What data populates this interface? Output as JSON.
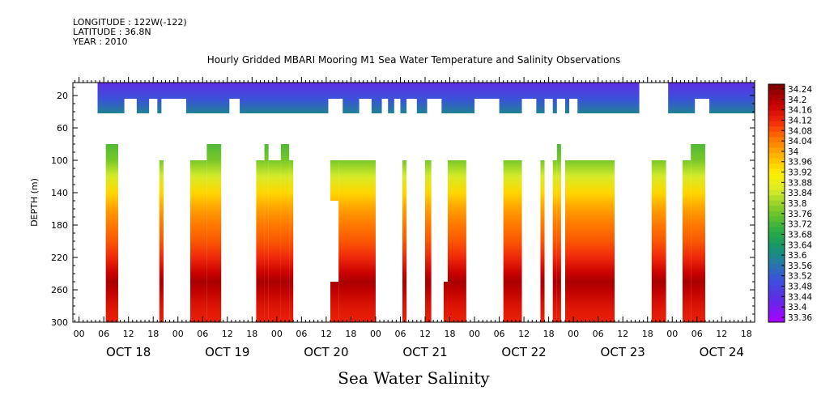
{
  "header": {
    "longitude": "LONGITUDE : 122W(-122)",
    "latitude": "LATITUDE : 36.8N",
    "year": "YEAR : 2010"
  },
  "chart_data": {
    "type": "heatmap",
    "title": "Hourly Gridded MBARI Mooring M1 Sea Water Temperature and Salinity Observations",
    "xlabel": "Sea Water Salinity",
    "ylabel": "DEPTH (m)",
    "x_hour_ticks": [
      "00",
      "06",
      "12",
      "18",
      "00",
      "06",
      "12",
      "18",
      "00",
      "06",
      "12",
      "18",
      "00",
      "06",
      "12",
      "18",
      "00",
      "06",
      "12",
      "18",
      "00",
      "06",
      "12",
      "18",
      "00",
      "06",
      "12",
      "18"
    ],
    "x_day_labels": [
      "OCT 18",
      "OCT 19",
      "OCT 20",
      "OCT 21",
      "OCT 22",
      "OCT 23",
      "OCT 24"
    ],
    "xlim_hours": [
      -1.5,
      164
    ],
    "y_ticks": [
      20,
      60,
      100,
      140,
      180,
      220,
      260,
      300
    ],
    "ylim": [
      300,
      4
    ],
    "colorbar": {
      "labels": [
        "34.24",
        "34.2",
        "34.16",
        "34.12",
        "34.08",
        "34.04",
        "34",
        "33.96",
        "33.92",
        "33.88",
        "33.84",
        "33.8",
        "33.76",
        "33.72",
        "33.68",
        "33.64",
        "33.6",
        "33.56",
        "33.52",
        "33.48",
        "33.44",
        "33.4",
        "33.36"
      ],
      "range": [
        33.36,
        34.26
      ]
    },
    "surface_layer": {
      "depth": [
        4,
        42
      ],
      "salinity_top": 33.45,
      "salinity_bottom": 33.6,
      "data_hours": [
        [
          4.5,
          136
        ],
        [
          143,
          164
        ]
      ],
      "deep_extent_gaps": [
        [
          11,
          14
        ],
        [
          17,
          19
        ],
        [
          20,
          26
        ],
        [
          36.5,
          39
        ],
        [
          60.5,
          64
        ],
        [
          68,
          71
        ],
        [
          73.5,
          75
        ],
        [
          76.5,
          78
        ],
        [
          79.5,
          82
        ],
        [
          84.5,
          88
        ],
        [
          96,
          102
        ],
        [
          107.5,
          111
        ],
        [
          113,
          115
        ],
        [
          116,
          118
        ],
        [
          119,
          121
        ],
        [
          149.5,
          153
        ]
      ]
    },
    "deep_layer": {
      "profile_depths": [
        80,
        100,
        120,
        140,
        160,
        180,
        200,
        220,
        240,
        250,
        260,
        280,
        300
      ],
      "profile_salinity": [
        33.74,
        33.78,
        33.86,
        33.95,
        34.01,
        34.05,
        34.08,
        34.12,
        34.18,
        34.21,
        34.19,
        34.15,
        34.13
      ],
      "segments": [
        {
          "hours": [
            6.5,
            9.5
          ],
          "top": 80
        },
        {
          "hours": [
            19.5,
            20.5
          ],
          "top": 100
        },
        {
          "hours": [
            27,
            31
          ],
          "top": 100
        },
        {
          "hours": [
            31,
            34.5
          ],
          "top": 80
        },
        {
          "hours": [
            43,
            45
          ],
          "top": 100
        },
        {
          "hours": [
            45,
            46
          ],
          "top": 80
        },
        {
          "hours": [
            46,
            49
          ],
          "top": 100
        },
        {
          "hours": [
            49,
            51
          ],
          "top": 80
        },
        {
          "hours": [
            51,
            52
          ],
          "top": 100
        },
        {
          "hours": [
            61,
            63
          ],
          "top": 100,
          "bottom": 150
        },
        {
          "hours": [
            61,
            63
          ],
          "top": 250,
          "bottom": 300
        },
        {
          "hours": [
            63,
            72
          ],
          "top": 100
        },
        {
          "hours": [
            78.5,
            79.5
          ],
          "top": 100
        },
        {
          "hours": [
            84,
            85.5
          ],
          "top": 100
        },
        {
          "hours": [
            88.5,
            89.5
          ],
          "top": 250,
          "bottom": 300
        },
        {
          "hours": [
            89.5,
            94
          ],
          "top": 100
        },
        {
          "hours": [
            103,
            107.5
          ],
          "top": 100
        },
        {
          "hours": [
            112,
            113
          ],
          "top": 100
        },
        {
          "hours": [
            115,
            116
          ],
          "top": 100
        },
        {
          "hours": [
            116,
            117
          ],
          "top": 80
        },
        {
          "hours": [
            118,
            130
          ],
          "top": 100
        },
        {
          "hours": [
            139,
            142.5
          ],
          "top": 100
        },
        {
          "hours": [
            146.5,
            148.5
          ],
          "top": 100
        },
        {
          "hours": [
            148.5,
            152
          ],
          "top": 80
        }
      ]
    }
  }
}
